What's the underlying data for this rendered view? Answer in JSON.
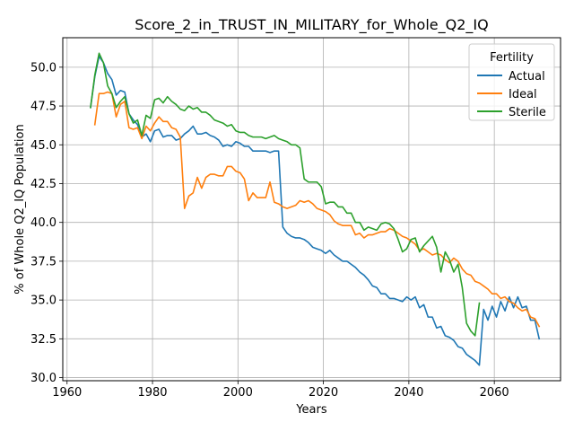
{
  "chart_data": {
    "type": "line",
    "title": "Score_2_in_TRUST_IN_MILITARY_for_Whole_Q2_IQ",
    "xlabel": "Years",
    "ylabel": "% of Whole Q2_IQ Population",
    "xlim": [
      1959,
      2075.5
    ],
    "ylim": [
      29.8,
      51.9
    ],
    "xticks": [
      1960,
      1980,
      2000,
      2020,
      2040,
      2060
    ],
    "yticks": [
      30.0,
      32.5,
      35.0,
      37.5,
      40.0,
      42.5,
      45.0,
      47.5,
      50.0
    ],
    "ytick_labels": [
      "30.0",
      "32.5",
      "35.0",
      "37.5",
      "40.0",
      "42.5",
      "45.0",
      "47.5",
      "50.0"
    ],
    "grid": true,
    "legend": {
      "title": "Fertility",
      "placement": "top-right"
    },
    "series": [
      {
        "name": "Actual",
        "color": "#1f77b4",
        "points": [
          [
            1965.5,
            47.4
          ],
          [
            1966.5,
            49.4
          ],
          [
            1967.5,
            50.7
          ],
          [
            1968.5,
            50.3
          ],
          [
            1969.5,
            49.6
          ],
          [
            1970.5,
            49.2
          ],
          [
            1971.5,
            48.2
          ],
          [
            1972.5,
            48.5
          ],
          [
            1973.5,
            48.4
          ],
          [
            1974.5,
            47.0
          ],
          [
            1975.5,
            46.6
          ],
          [
            1976.5,
            46.3
          ],
          [
            1977.5,
            45.5
          ],
          [
            1978.5,
            45.7
          ],
          [
            1979.5,
            45.2
          ],
          [
            1980.5,
            45.9
          ],
          [
            1981.5,
            46.0
          ],
          [
            1982.5,
            45.5
          ],
          [
            1983.5,
            45.6
          ],
          [
            1984.5,
            45.6
          ],
          [
            1985.5,
            45.3
          ],
          [
            1986.5,
            45.4
          ],
          [
            1987.5,
            45.7
          ],
          [
            1988.5,
            45.9
          ],
          [
            1989.5,
            46.2
          ],
          [
            1990.5,
            45.7
          ],
          [
            1991.5,
            45.7
          ],
          [
            1992.5,
            45.8
          ],
          [
            1993.5,
            45.6
          ],
          [
            1994.5,
            45.5
          ],
          [
            1995.5,
            45.3
          ],
          [
            1996.5,
            44.9
          ],
          [
            1997.5,
            45.0
          ],
          [
            1998.5,
            44.9
          ],
          [
            1999.5,
            45.2
          ],
          [
            2000.5,
            45.1
          ],
          [
            2001.5,
            44.9
          ],
          [
            2002.5,
            44.9
          ],
          [
            2003.5,
            44.6
          ],
          [
            2004.5,
            44.6
          ],
          [
            2005.5,
            44.6
          ],
          [
            2006.5,
            44.6
          ],
          [
            2007.5,
            44.5
          ],
          [
            2008.5,
            44.6
          ],
          [
            2009.5,
            44.6
          ],
          [
            2010.5,
            39.7
          ],
          [
            2011.5,
            39.3
          ],
          [
            2012.5,
            39.1
          ],
          [
            2013.5,
            39.0
          ],
          [
            2014.5,
            39.0
          ],
          [
            2015.5,
            38.9
          ],
          [
            2016.5,
            38.7
          ],
          [
            2017.5,
            38.4
          ],
          [
            2018.5,
            38.3
          ],
          [
            2019.5,
            38.2
          ],
          [
            2020.5,
            38.0
          ],
          [
            2021.5,
            38.2
          ],
          [
            2022.5,
            37.9
          ],
          [
            2023.5,
            37.7
          ],
          [
            2024.5,
            37.5
          ],
          [
            2025.5,
            37.5
          ],
          [
            2026.5,
            37.3
          ],
          [
            2027.5,
            37.1
          ],
          [
            2028.5,
            36.8
          ],
          [
            2029.5,
            36.6
          ],
          [
            2030.5,
            36.3
          ],
          [
            2031.5,
            35.9
          ],
          [
            2032.5,
            35.8
          ],
          [
            2033.5,
            35.4
          ],
          [
            2034.5,
            35.4
          ],
          [
            2035.5,
            35.1
          ],
          [
            2036.5,
            35.1
          ],
          [
            2037.5,
            35.0
          ],
          [
            2038.5,
            34.9
          ],
          [
            2039.5,
            35.2
          ],
          [
            2040.5,
            35.0
          ],
          [
            2041.5,
            35.2
          ],
          [
            2042.5,
            34.5
          ],
          [
            2043.5,
            34.7
          ],
          [
            2044.5,
            33.9
          ],
          [
            2045.5,
            33.9
          ],
          [
            2046.5,
            33.2
          ],
          [
            2047.5,
            33.3
          ],
          [
            2048.5,
            32.7
          ],
          [
            2049.5,
            32.6
          ],
          [
            2050.5,
            32.4
          ],
          [
            2051.5,
            32.0
          ],
          [
            2052.5,
            31.9
          ],
          [
            2053.5,
            31.5
          ],
          [
            2054.5,
            31.3
          ],
          [
            2055.5,
            31.1
          ],
          [
            2056.5,
            30.8
          ],
          [
            2057.5,
            34.4
          ],
          [
            2058.5,
            33.7
          ],
          [
            2059.5,
            34.6
          ],
          [
            2060.5,
            33.9
          ],
          [
            2061.5,
            34.9
          ],
          [
            2062.5,
            34.3
          ],
          [
            2063.5,
            35.2
          ],
          [
            2064.5,
            34.5
          ],
          [
            2065.5,
            35.2
          ],
          [
            2066.5,
            34.5
          ],
          [
            2067.5,
            34.6
          ],
          [
            2068.5,
            33.7
          ],
          [
            2069.5,
            33.7
          ],
          [
            2070.5,
            32.5
          ]
        ]
      },
      {
        "name": "Ideal",
        "color": "#ff7f0e",
        "points": [
          [
            1966.5,
            46.3
          ],
          [
            1967.5,
            48.3
          ],
          [
            1968.5,
            48.3
          ],
          [
            1969.5,
            48.4
          ],
          [
            1970.5,
            48.3
          ],
          [
            1971.5,
            46.8
          ],
          [
            1972.5,
            47.6
          ],
          [
            1973.5,
            47.8
          ],
          [
            1974.5,
            46.1
          ],
          [
            1975.5,
            46.0
          ],
          [
            1976.5,
            46.1
          ],
          [
            1977.5,
            45.4
          ],
          [
            1978.5,
            46.2
          ],
          [
            1979.5,
            45.9
          ],
          [
            1980.5,
            46.4
          ],
          [
            1981.5,
            46.8
          ],
          [
            1982.5,
            46.5
          ],
          [
            1983.5,
            46.5
          ],
          [
            1984.5,
            46.1
          ],
          [
            1985.5,
            46.0
          ],
          [
            1986.5,
            45.5
          ],
          [
            1987.5,
            40.9
          ],
          [
            1988.5,
            41.7
          ],
          [
            1989.5,
            41.9
          ],
          [
            1990.5,
            42.9
          ],
          [
            1991.5,
            42.2
          ],
          [
            1992.5,
            42.9
          ],
          [
            1993.5,
            43.1
          ],
          [
            1994.5,
            43.1
          ],
          [
            1995.5,
            43.0
          ],
          [
            1996.5,
            43.0
          ],
          [
            1997.5,
            43.6
          ],
          [
            1998.5,
            43.6
          ],
          [
            1999.5,
            43.3
          ],
          [
            2000.5,
            43.2
          ],
          [
            2001.5,
            42.8
          ],
          [
            2002.5,
            41.4
          ],
          [
            2003.5,
            41.9
          ],
          [
            2004.5,
            41.6
          ],
          [
            2005.5,
            41.6
          ],
          [
            2006.5,
            41.6
          ],
          [
            2007.5,
            42.6
          ],
          [
            2008.5,
            41.3
          ],
          [
            2009.5,
            41.2
          ],
          [
            2010.5,
            41.0
          ],
          [
            2011.5,
            40.9
          ],
          [
            2012.5,
            41.0
          ],
          [
            2013.5,
            41.1
          ],
          [
            2014.5,
            41.4
          ],
          [
            2015.5,
            41.3
          ],
          [
            2016.5,
            41.4
          ],
          [
            2017.5,
            41.2
          ],
          [
            2018.5,
            40.9
          ],
          [
            2019.5,
            40.8
          ],
          [
            2020.5,
            40.7
          ],
          [
            2021.5,
            40.5
          ],
          [
            2022.5,
            40.1
          ],
          [
            2023.5,
            39.9
          ],
          [
            2024.5,
            39.8
          ],
          [
            2025.5,
            39.8
          ],
          [
            2026.5,
            39.8
          ],
          [
            2027.5,
            39.2
          ],
          [
            2028.5,
            39.3
          ],
          [
            2029.5,
            39.0
          ],
          [
            2030.5,
            39.2
          ],
          [
            2031.5,
            39.2
          ],
          [
            2032.5,
            39.3
          ],
          [
            2033.5,
            39.4
          ],
          [
            2034.5,
            39.4
          ],
          [
            2035.5,
            39.6
          ],
          [
            2036.5,
            39.5
          ],
          [
            2037.5,
            39.3
          ],
          [
            2038.5,
            39.1
          ],
          [
            2039.5,
            39.0
          ],
          [
            2040.5,
            38.8
          ],
          [
            2041.5,
            38.6
          ],
          [
            2042.5,
            38.2
          ],
          [
            2043.5,
            38.3
          ],
          [
            2044.5,
            38.1
          ],
          [
            2045.5,
            37.9
          ],
          [
            2046.5,
            38.0
          ],
          [
            2047.5,
            37.9
          ],
          [
            2048.5,
            37.6
          ],
          [
            2049.5,
            37.4
          ],
          [
            2050.5,
            37.7
          ],
          [
            2051.5,
            37.5
          ],
          [
            2052.5,
            37.0
          ],
          [
            2053.5,
            36.7
          ],
          [
            2054.5,
            36.6
          ],
          [
            2055.5,
            36.2
          ],
          [
            2056.5,
            36.1
          ],
          [
            2057.5,
            35.9
          ],
          [
            2058.5,
            35.7
          ],
          [
            2059.5,
            35.4
          ],
          [
            2060.5,
            35.4
          ],
          [
            2061.5,
            35.1
          ],
          [
            2062.5,
            35.2
          ],
          [
            2063.5,
            34.9
          ],
          [
            2064.5,
            34.8
          ],
          [
            2065.5,
            34.5
          ],
          [
            2066.5,
            34.3
          ],
          [
            2067.5,
            34.4
          ],
          [
            2068.5,
            33.9
          ],
          [
            2069.5,
            33.8
          ],
          [
            2070.5,
            33.3
          ]
        ]
      },
      {
        "name": "Sterile",
        "color": "#2ca02c",
        "points": [
          [
            1965.5,
            47.4
          ],
          [
            1966.5,
            49.5
          ],
          [
            1967.5,
            50.9
          ],
          [
            1968.5,
            50.3
          ],
          [
            1969.5,
            48.8
          ],
          [
            1970.5,
            48.3
          ],
          [
            1971.5,
            47.4
          ],
          [
            1972.5,
            47.8
          ],
          [
            1973.5,
            48.1
          ],
          [
            1974.5,
            47.0
          ],
          [
            1975.5,
            46.4
          ],
          [
            1976.5,
            46.6
          ],
          [
            1977.5,
            45.6
          ],
          [
            1978.5,
            46.9
          ],
          [
            1979.5,
            46.7
          ],
          [
            1980.5,
            47.9
          ],
          [
            1981.5,
            48.0
          ],
          [
            1982.5,
            47.7
          ],
          [
            1983.5,
            48.1
          ],
          [
            1984.5,
            47.8
          ],
          [
            1985.5,
            47.6
          ],
          [
            1986.5,
            47.3
          ],
          [
            1987.5,
            47.2
          ],
          [
            1988.5,
            47.5
          ],
          [
            1989.5,
            47.3
          ],
          [
            1990.5,
            47.4
          ],
          [
            1991.5,
            47.1
          ],
          [
            1992.5,
            47.1
          ],
          [
            1993.5,
            46.9
          ],
          [
            1994.5,
            46.6
          ],
          [
            1995.5,
            46.5
          ],
          [
            1996.5,
            46.4
          ],
          [
            1997.5,
            46.2
          ],
          [
            1998.5,
            46.3
          ],
          [
            1999.5,
            45.9
          ],
          [
            2000.5,
            45.8
          ],
          [
            2001.5,
            45.8
          ],
          [
            2002.5,
            45.6
          ],
          [
            2003.5,
            45.5
          ],
          [
            2004.5,
            45.5
          ],
          [
            2005.5,
            45.5
          ],
          [
            2006.5,
            45.4
          ],
          [
            2007.5,
            45.5
          ],
          [
            2008.5,
            45.6
          ],
          [
            2009.5,
            45.4
          ],
          [
            2010.5,
            45.3
          ],
          [
            2011.5,
            45.2
          ],
          [
            2012.5,
            45.0
          ],
          [
            2013.5,
            45.0
          ],
          [
            2014.5,
            44.8
          ],
          [
            2015.5,
            42.8
          ],
          [
            2016.5,
            42.6
          ],
          [
            2017.5,
            42.6
          ],
          [
            2018.5,
            42.6
          ],
          [
            2019.5,
            42.3
          ],
          [
            2020.5,
            41.2
          ],
          [
            2021.5,
            41.3
          ],
          [
            2022.5,
            41.3
          ],
          [
            2023.5,
            41.0
          ],
          [
            2024.5,
            41.0
          ],
          [
            2025.5,
            40.6
          ],
          [
            2026.5,
            40.6
          ],
          [
            2027.5,
            40.0
          ],
          [
            2028.5,
            40.0
          ],
          [
            2029.5,
            39.5
          ],
          [
            2030.5,
            39.7
          ],
          [
            2031.5,
            39.6
          ],
          [
            2032.5,
            39.5
          ],
          [
            2033.5,
            39.9
          ],
          [
            2034.5,
            40.0
          ],
          [
            2035.5,
            39.9
          ],
          [
            2036.5,
            39.6
          ],
          [
            2037.5,
            38.9
          ],
          [
            2038.5,
            38.1
          ],
          [
            2039.5,
            38.3
          ],
          [
            2040.5,
            38.9
          ],
          [
            2041.5,
            39.0
          ],
          [
            2042.5,
            38.1
          ],
          [
            2043.5,
            38.5
          ],
          [
            2044.5,
            38.8
          ],
          [
            2045.5,
            39.1
          ],
          [
            2046.5,
            38.4
          ],
          [
            2047.5,
            36.8
          ],
          [
            2048.5,
            38.1
          ],
          [
            2049.5,
            37.6
          ],
          [
            2050.5,
            36.8
          ],
          [
            2051.5,
            37.3
          ],
          [
            2052.5,
            35.8
          ],
          [
            2053.5,
            33.5
          ],
          [
            2054.5,
            33.0
          ],
          [
            2055.5,
            32.7
          ],
          [
            2056.5,
            34.8
          ]
        ]
      }
    ]
  }
}
